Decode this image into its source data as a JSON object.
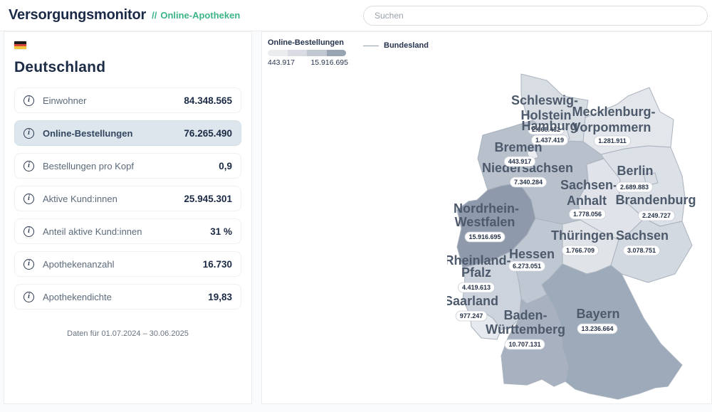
{
  "header": {
    "title": "Versorgungsmonitor",
    "separator": "//",
    "subtitle": "Online-Apotheken",
    "search_placeholder": "Suchen"
  },
  "sidebar": {
    "country": "Deutschland",
    "flag_colors": [
      "#1a1a1a",
      "#d9453b",
      "#efc73f"
    ],
    "stats": [
      {
        "label": "Einwohner",
        "value": "84.348.565",
        "highlighted": false
      },
      {
        "label": "Online-Bestellungen",
        "value": "76.265.490",
        "highlighted": true
      },
      {
        "label": "Bestellungen pro Kopf",
        "value": "0,9",
        "highlighted": false
      },
      {
        "label": "Aktive Kund:innen",
        "value": "25.945.301",
        "highlighted": false
      },
      {
        "label": "Anteil aktive Kund:innen",
        "value": "31 %",
        "highlighted": false
      },
      {
        "label": "Apothekenanzahl",
        "value": "16.730",
        "highlighted": false
      },
      {
        "label": "Apothekendichte",
        "value": "19,83",
        "highlighted": false
      }
    ],
    "footnote": "Daten für 01.07.2024 – 30.06.2025"
  },
  "map_panel": {
    "legend": {
      "title": "Online-Bestellungen",
      "min": "443.917",
      "max": "15.916.695",
      "gradient": [
        "#eaecef",
        "#d9dde3",
        "#c1c7d1",
        "#99a4b3"
      ],
      "line_label": "Bundesland"
    }
  },
  "chart_data": {
    "type": "choropleth_map",
    "title": "Online-Bestellungen",
    "region": "Deutschland",
    "scale": {
      "min_label": "443.917",
      "max_label": "15.916.695"
    },
    "legend_shape_label": "Bundesland",
    "states": [
      {
        "id": "niedersachsen",
        "name": "Niedersachsen",
        "name_lines": [
          "Niedersachsen"
        ],
        "value": "7.340.284",
        "fill": "#b7c0cb"
      },
      {
        "id": "schleswig-holstein",
        "name": "Schleswig-Holstein",
        "name_lines": [
          "Schleswig-",
          "Holstein"
        ],
        "value": "2.668.432",
        "fill": "#d8dde4"
      },
      {
        "id": "mecklenburg-vorpommern",
        "name": "Mecklenburg-Vorpommern",
        "name_lines": [
          "Mecklenburg-",
          "Vorpommern"
        ],
        "value": "1.281.911",
        "fill": "#e3e6eb"
      },
      {
        "id": "brandenburg",
        "name": "Brandenburg",
        "name_lines": [
          "Brandenburg"
        ],
        "value": "2.249.727",
        "fill": "#dce0e7"
      },
      {
        "id": "sachsen-anhalt",
        "name": "Sachsen-Anhalt",
        "name_lines": [
          "Sachsen-",
          "Anhalt"
        ],
        "value": "1.778.056",
        "fill": "#e0e3e9"
      },
      {
        "id": "sachsen",
        "name": "Sachsen",
        "name_lines": [
          "Sachsen"
        ],
        "value": "3.078.751",
        "fill": "#d3d9e0"
      },
      {
        "id": "thueringen",
        "name": "Thüringen",
        "name_lines": [
          "Thüringen"
        ],
        "value": "1.766.709",
        "fill": "#e0e4e9"
      },
      {
        "id": "hessen",
        "name": "Hessen",
        "name_lines": [
          "Hessen"
        ],
        "value": "6.273.051",
        "fill": "#bfc7d2"
      },
      {
        "id": "nordrhein-westfalen",
        "name": "Nordrhein-Westfalen",
        "name_lines": [
          "Nordrhein-",
          "Westfalen"
        ],
        "value": "15.916.695",
        "fill": "#8e9aac"
      },
      {
        "id": "rheinland-pfalz",
        "name": "Rheinland-Pfalz",
        "name_lines": [
          "Rheinland-",
          "Pfalz"
        ],
        "value": "4.419.613",
        "fill": "#cdd3dc"
      },
      {
        "id": "saarland",
        "name": "Saarland",
        "name_lines": [
          "Saarland"
        ],
        "value": "977.247",
        "fill": "#e6e9ed"
      },
      {
        "id": "baden-wuerttemberg",
        "name": "Baden-Württemberg",
        "name_lines": [
          "Baden-",
          "Württemberg"
        ],
        "value": "10.707.131",
        "fill": "#a7b1c0"
      },
      {
        "id": "bayern",
        "name": "Bayern",
        "name_lines": [
          "Bayern"
        ],
        "value": "13.236.664",
        "fill": "#9daab9"
      },
      {
        "id": "hamburg",
        "name": "Hamburg",
        "name_lines": [
          "Hamburg"
        ],
        "value": "1.437.419",
        "fill": "#e2e5ea"
      },
      {
        "id": "bremen",
        "name": "Bremen",
        "name_lines": [
          "Bremen"
        ],
        "value": "443.917",
        "fill": "#ebedf0"
      },
      {
        "id": "berlin",
        "name": "Berlin",
        "name_lines": [
          "Berlin"
        ],
        "value": "2.689.883",
        "fill": "#d8dde4"
      }
    ]
  }
}
